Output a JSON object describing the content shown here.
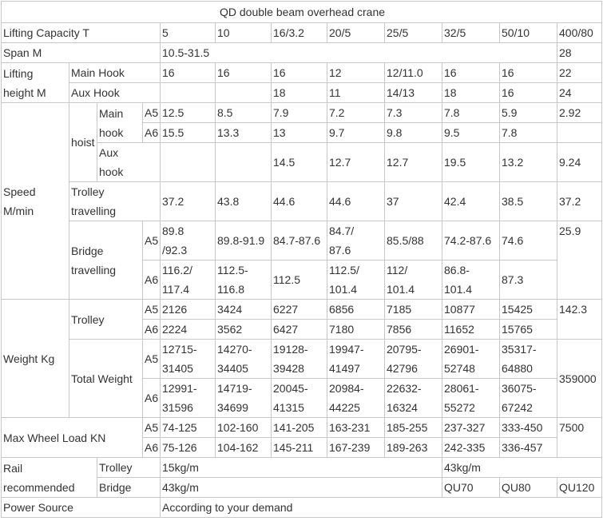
{
  "title": "QD double beam overhead crane",
  "rows": [
    [
      "Lifting Capacity  T",
      "5",
      "10",
      "16/3.2",
      "20/5",
      "25/5",
      "32/5",
      "50/10",
      "400/80"
    ],
    [
      "Span  M",
      "10.5-31.5",
      "28"
    ],
    [
      "Lifting\nheight M",
      "Main Hook",
      "16",
      "16",
      "16",
      "12",
      "12/11.0",
      "16",
      "16",
      "22"
    ],
    [
      "Aux Hook",
      "18",
      "11",
      "14/13",
      "18",
      "16",
      "24"
    ],
    [
      "Speed\nM/min",
      "hoist",
      "Main\nhook",
      "A5",
      "12.5",
      "8.5",
      "7.9",
      "7.2",
      "7.3",
      "7.8",
      "5.9",
      "2.92"
    ],
    [
      "A6",
      "15.5",
      "13.3",
      "13",
      "9.7",
      "9.8",
      "9.5",
      "7.8"
    ],
    [
      "Aux\nhook",
      "14.5",
      "12.7",
      "12.7",
      "19.5",
      "13.2",
      "9.24"
    ],
    [
      "Trolley\ntravelling",
      "37.2",
      "43.8",
      "44.6",
      "44.6",
      "37",
      "42.4",
      "38.5",
      "37.2"
    ],
    [
      "Bridge\ntravelling",
      "A5",
      "89.8\n/92.3",
      "89.8-91.9",
      "84.7-87.6",
      "84.7/\n87.6",
      "85.5/88",
      "74.2-87.6",
      "74.6",
      "25.9"
    ],
    [
      "A6",
      "116.2/\n117.4",
      "112.5-\n116.8",
      "112.5",
      "112.5/\n101.4",
      "112/\n101.4",
      "86.8-\n101.4",
      "87.3"
    ],
    [
      "Weight  Kg",
      "Trolley",
      "A5",
      "2126",
      "3424",
      "6227",
      "6856",
      "7185",
      "10877",
      "15425",
      "142.3"
    ],
    [
      "A6",
      "2224",
      "3562",
      "6427",
      "7180",
      "7856",
      "11652",
      "15765"
    ],
    [
      "Total Weight",
      "A5",
      "12715-\n31405",
      "14270-\n34405",
      "19128-\n39428",
      "19947-\n41497",
      "20795-\n42796",
      "26901-\n52748",
      "35317-\n64880",
      "359000"
    ],
    [
      "A6",
      "12991-\n31596",
      "14719-\n34699",
      "20045-\n41315",
      "20984-\n44225",
      "22632-\n16324",
      "28061-\n55272",
      "36075-\n67242"
    ],
    [
      "Max Wheel Load KN",
      "A5",
      "74-125",
      "102-160",
      "141-205",
      "163-231",
      "185-255",
      "237-327",
      "333-450",
      "7500"
    ],
    [
      "A6",
      "75-126",
      "104-162",
      "145-211",
      "167-239",
      "189-263",
      "242-335",
      "336-457"
    ],
    [
      "Rail\nrecommended",
      "Trolley",
      "15kg/m",
      "43kg/m"
    ],
    [
      "Bridge",
      "43kg/m",
      "QU70",
      "QU80",
      "QU120"
    ],
    [
      "Power Source",
      "According to your demand"
    ]
  ]
}
